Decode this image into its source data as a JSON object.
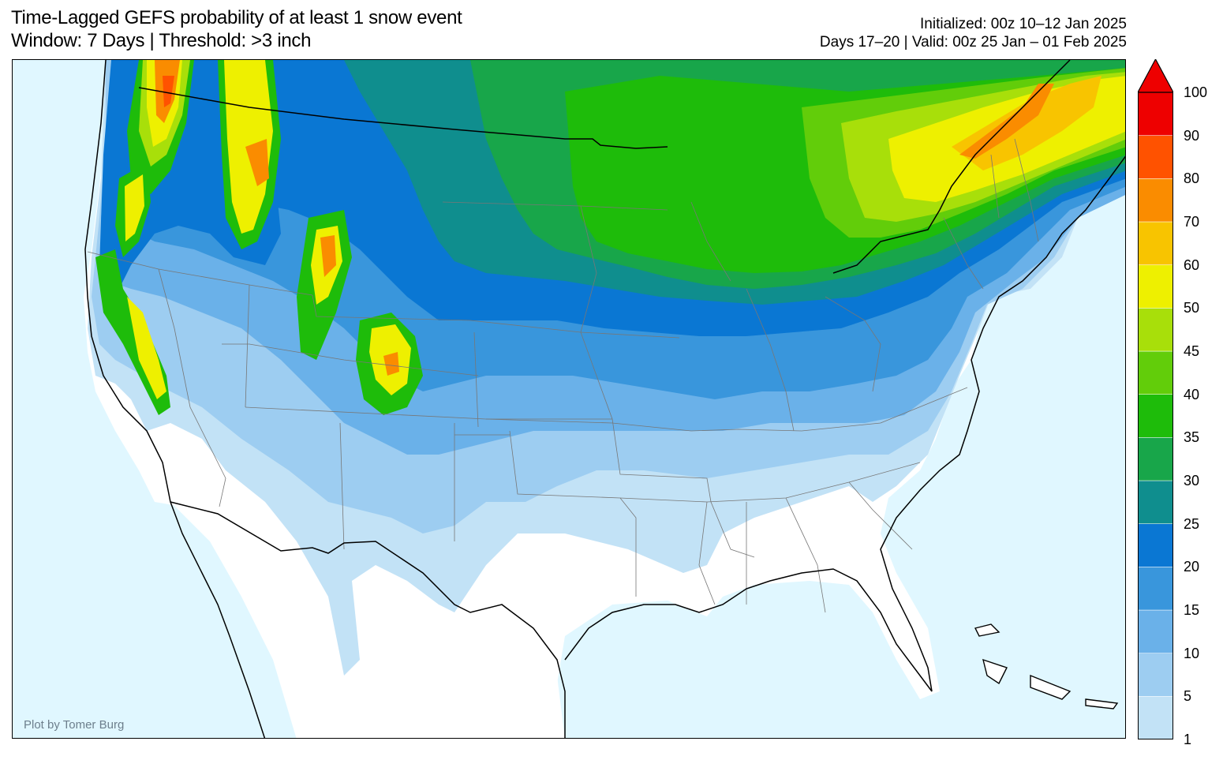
{
  "header": {
    "title_line1": "Time-Lagged GEFS probability of at least 1 snow event",
    "title_line2": "Window: 7 Days | Threshold: >3 inch",
    "init_line": "Initialized: 00z 10–12 Jan 2025",
    "valid_line": "Days 17–20 | Valid: 00z 25 Jan – 01 Feb 2025"
  },
  "credit": "Plot by Tomer Burg",
  "colorbar": {
    "levels": [
      "1",
      "5",
      "10",
      "15",
      "20",
      "25",
      "30",
      "35",
      "40",
      "45",
      "50",
      "60",
      "70",
      "80",
      "90",
      "100"
    ],
    "colors": [
      "#c2e2f6",
      "#9dcdf1",
      "#6ab1e9",
      "#3996dc",
      "#0a77d3",
      "#0f8e8e",
      "#18a64a",
      "#1ebc0a",
      "#62cd0a",
      "#a8df0a",
      "#eef000",
      "#f8c400",
      "#fa8c00",
      "#ff5200",
      "#ee0000"
    ],
    "extend": "max"
  },
  "map": {
    "ocean_color": "#e0f7ff",
    "land_color": "#ffffff",
    "region": "CONUS"
  }
}
